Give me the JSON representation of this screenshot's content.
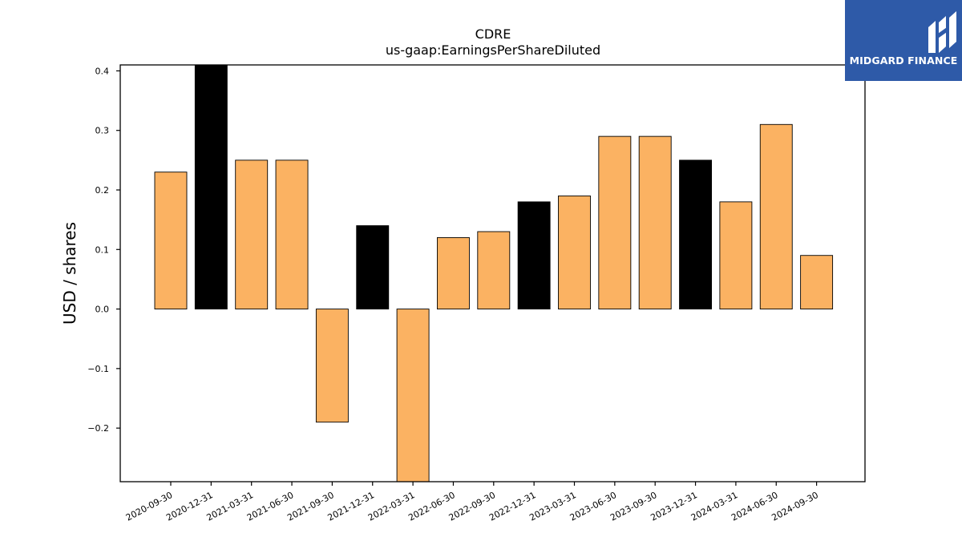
{
  "chart_data": {
    "type": "bar",
    "title": "CDRE",
    "subtitle": "us-gaap:EarningsPerShareDiluted",
    "xlabel": "",
    "ylabel": "USD / shares",
    "ylim": [
      -0.29,
      0.41
    ],
    "yticks": [
      -0.2,
      -0.1,
      0.0,
      0.1,
      0.2,
      0.3,
      0.4
    ],
    "ytick_labels": [
      "−0.2",
      "−0.1",
      "0.0",
      "0.1",
      "0.2",
      "0.3",
      "0.4"
    ],
    "grid": false,
    "categories": [
      "2020-09-30",
      "2020-12-31",
      "2021-03-31",
      "2021-06-30",
      "2021-09-30",
      "2021-12-31",
      "2022-03-31",
      "2022-06-30",
      "2022-09-30",
      "2022-12-31",
      "2023-03-31",
      "2023-06-30",
      "2023-09-30",
      "2023-12-31",
      "2024-03-31",
      "2024-06-30",
      "2024-09-30"
    ],
    "values": [
      0.23,
      0.41,
      0.25,
      0.25,
      -0.19,
      0.14,
      -0.29,
      0.12,
      0.13,
      0.18,
      0.19,
      0.29,
      0.29,
      0.25,
      0.18,
      0.31,
      0.09
    ],
    "bar_colors": [
      "#fbb262",
      "#000000",
      "#fbb262",
      "#fbb262",
      "#fbb262",
      "#000000",
      "#fbb262",
      "#fbb262",
      "#fbb262",
      "#000000",
      "#fbb262",
      "#fbb262",
      "#fbb262",
      "#000000",
      "#fbb262",
      "#fbb262",
      "#fbb262"
    ]
  },
  "logo": {
    "text": "MIDGARD FINANCE",
    "background": "#2e5aa8"
  }
}
